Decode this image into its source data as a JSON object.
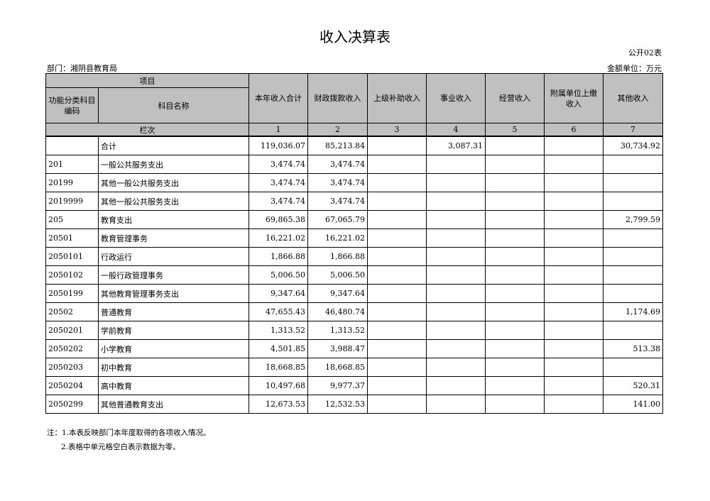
{
  "title": "收入决算表",
  "form_no": "公开02表",
  "department": "部门：湘阴县教育局",
  "unit": "金额单位：万元",
  "header": {
    "item": "项目",
    "code": "功能分类科目编码",
    "name": "科目名称",
    "columns": [
      "本年收入合计",
      "财政拨款收入",
      "上级补助收入",
      "事业收入",
      "经营收入",
      "附属单位上缴收入",
      "其他收入"
    ],
    "row_index_label": "栏次",
    "row_index": [
      "1",
      "2",
      "3",
      "4",
      "5",
      "6",
      "7"
    ]
  },
  "rows": [
    {
      "code": "",
      "name": "合计",
      "values": [
        "119,036.07",
        "85,213.84",
        "",
        "3,087.31",
        "",
        "",
        "30,734.92"
      ]
    },
    {
      "code": "201",
      "name": "一般公共服务支出",
      "values": [
        "3,474.74",
        "3,474.74",
        "",
        "",
        "",
        "",
        ""
      ]
    },
    {
      "code": "20199",
      "name": "其他一般公共服务支出",
      "values": [
        "3,474.74",
        "3,474.74",
        "",
        "",
        "",
        "",
        ""
      ]
    },
    {
      "code": "2019999",
      "name": "其他一般公共服务支出",
      "values": [
        "3,474.74",
        "3,474.74",
        "",
        "",
        "",
        "",
        ""
      ]
    },
    {
      "code": "205",
      "name": "教育支出",
      "values": [
        "69,865.38",
        "67,065.79",
        "",
        "",
        "",
        "",
        "2,799.59"
      ]
    },
    {
      "code": "20501",
      "name": "教育管理事务",
      "values": [
        "16,221.02",
        "16,221.02",
        "",
        "",
        "",
        "",
        ""
      ]
    },
    {
      "code": "2050101",
      "name": "行政运行",
      "values": [
        "1,866.88",
        "1,866.88",
        "",
        "",
        "",
        "",
        ""
      ]
    },
    {
      "code": "2050102",
      "name": "一般行政管理事务",
      "values": [
        "5,006.50",
        "5,006.50",
        "",
        "",
        "",
        "",
        ""
      ]
    },
    {
      "code": "2050199",
      "name": "其他教育管理事务支出",
      "values": [
        "9,347.64",
        "9,347.64",
        "",
        "",
        "",
        "",
        ""
      ]
    },
    {
      "code": "20502",
      "name": "普通教育",
      "values": [
        "47,655.43",
        "46,480.74",
        "",
        "",
        "",
        "",
        "1,174.69"
      ]
    },
    {
      "code": "2050201",
      "name": "学前教育",
      "values": [
        "1,313.52",
        "1,313.52",
        "",
        "",
        "",
        "",
        ""
      ]
    },
    {
      "code": "2050202",
      "name": "小学教育",
      "values": [
        "4,501.85",
        "3,988.47",
        "",
        "",
        "",
        "",
        "513.38"
      ]
    },
    {
      "code": "2050203",
      "name": "初中教育",
      "values": [
        "18,668.85",
        "18,668.85",
        "",
        "",
        "",
        "",
        ""
      ]
    },
    {
      "code": "2050204",
      "name": "高中教育",
      "values": [
        "10,497.68",
        "9,977.37",
        "",
        "",
        "",
        "",
        "520.31"
      ]
    },
    {
      "code": "2050299",
      "name": "其他普通教育支出",
      "values": [
        "12,673.53",
        "12,532.53",
        "",
        "",
        "",
        "",
        "141.00"
      ]
    }
  ],
  "notes": [
    "注：1.本表反映部门本年度取得的各项收入情况。",
    "2.表格中单元格空白表示数据为零。"
  ]
}
